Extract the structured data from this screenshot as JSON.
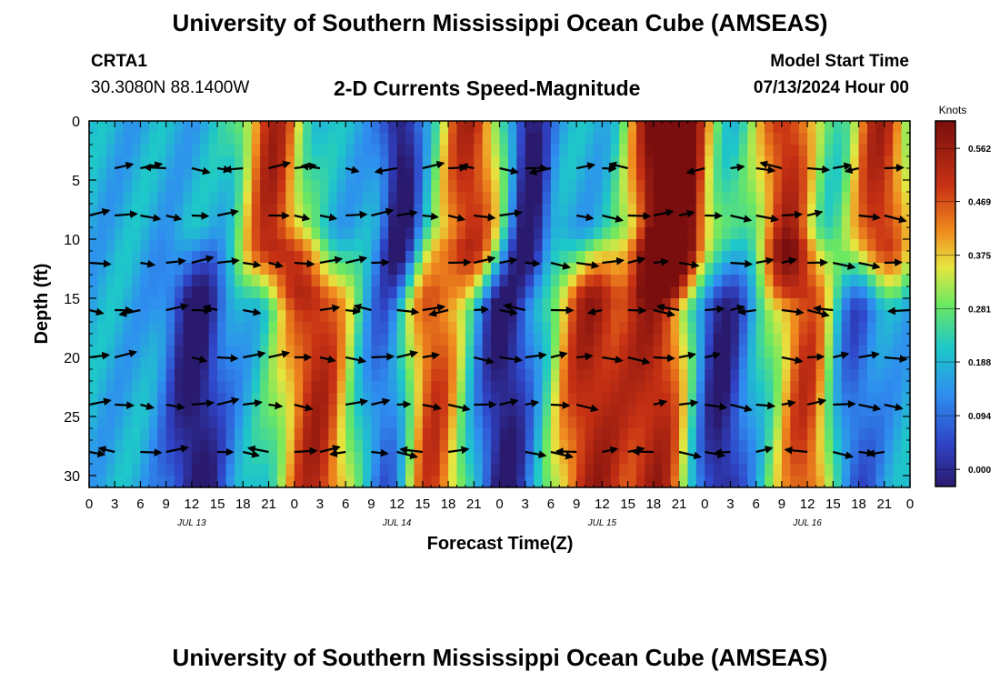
{
  "header": {
    "title": "University of Southern Mississippi Ocean Cube (AMSEAS)",
    "station": "CRTA1",
    "coords": "30.3080N  88.1400W",
    "plot_title": "2-D Currents Speed-Magnitude",
    "model_start_label": "Model Start Time",
    "model_start_value": "07/13/2024 Hour 00"
  },
  "footer": {
    "title": "University of Southern Mississippi Ocean Cube (AMSEAS)"
  },
  "colors": {
    "min": "#2a1a6e",
    "low": "#2f6ee0",
    "mid_low": "#1ec8c8",
    "mid": "#e6e640",
    "mid_high": "#f08a1e",
    "max": "#7a0e0e"
  },
  "chart_data": {
    "type": "heatmap",
    "title": "2-D Currents Speed-Magnitude",
    "xlabel": "Forecast Time(Z)",
    "ylabel": "Depth (ft)",
    "x_tick_labels": [
      "0",
      "3",
      "6",
      "9",
      "12",
      "15",
      "18",
      "21",
      "0",
      "3",
      "6",
      "9",
      "12",
      "15",
      "18",
      "21",
      "0",
      "3",
      "6",
      "9",
      "12",
      "15",
      "18",
      "21",
      "0",
      "3",
      "6",
      "9",
      "12",
      "15",
      "18",
      "21",
      "0"
    ],
    "x_range_hours": [
      0,
      96
    ],
    "day_labels": [
      "JUL 13",
      "JUL 14",
      "JUL 15",
      "JUL 16"
    ],
    "y_ticks": [
      0,
      5,
      10,
      15,
      20,
      25,
      30
    ],
    "y_range": [
      0,
      31
    ],
    "colorbar": {
      "title": "Knots",
      "tick_labels": [
        "0.000",
        "0.094",
        "0.188",
        "0.281",
        "0.375",
        "0.469",
        "0.562"
      ],
      "range": [
        -0.03,
        0.61
      ]
    },
    "arrow_depths": [
      4,
      8,
      12,
      16,
      20,
      24,
      28
    ],
    "fields": {
      "surface_strong_hours": [
        21.5,
        44.5,
        66.5,
        69.5,
        81.5,
        92.5
      ],
      "surface_weak_hours": [
        36.5,
        51.5
      ],
      "deep_strong_hours": [
        26.5,
        39.5,
        58.5,
        66.5,
        84.5
      ],
      "deep_weak_hours": [
        12.5,
        35.5,
        48.5,
        73.5,
        88.5
      ]
    }
  }
}
